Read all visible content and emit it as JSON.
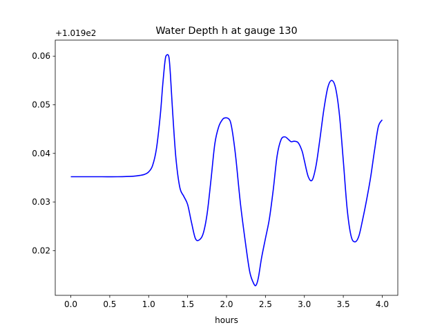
{
  "chart_data": {
    "type": "line",
    "title": "Water Depth h at gauge 130",
    "xlabel": "hours",
    "ylabel": "",
    "offset_label": "+1.019e2",
    "xlim": [
      -0.2,
      4.2
    ],
    "ylim": [
      0.0108,
      0.0633
    ],
    "x_ticks": [
      0.0,
      0.5,
      1.0,
      1.5,
      2.0,
      2.5,
      3.0,
      3.5,
      4.0
    ],
    "x_tick_labels": [
      "0.0",
      "0.5",
      "1.0",
      "1.5",
      "2.0",
      "2.5",
      "3.0",
      "3.5",
      "4.0"
    ],
    "y_ticks": [
      0.02,
      0.03,
      0.04,
      0.05,
      0.06
    ],
    "y_tick_labels": [
      "0.02",
      "0.03",
      "0.04",
      "0.05",
      "0.06"
    ],
    "grid": false,
    "line_color": "#0000ff",
    "series": [
      {
        "x": [
          0.0,
          0.2,
          0.4,
          0.6,
          0.8,
          0.9,
          0.95,
          1.0,
          1.05,
          1.1,
          1.15,
          1.18,
          1.21,
          1.23,
          1.26,
          1.28,
          1.31,
          1.35,
          1.4,
          1.45,
          1.5,
          1.55,
          1.6,
          1.65,
          1.7,
          1.75,
          1.8,
          1.85,
          1.9,
          1.95,
          1.98,
          2.02,
          2.05,
          2.08,
          2.12,
          2.18,
          2.25,
          2.3,
          2.35,
          2.38,
          2.41,
          2.45,
          2.5,
          2.55,
          2.6,
          2.65,
          2.7,
          2.75,
          2.8,
          2.83,
          2.87,
          2.92,
          2.97,
          3.0,
          3.05,
          3.1,
          3.15,
          3.2,
          3.25,
          3.3,
          3.35,
          3.4,
          3.45,
          3.5,
          3.55,
          3.6,
          3.65,
          3.7,
          3.75,
          3.8,
          3.85,
          3.9,
          3.95,
          4.0
        ],
        "y": [
          0.0352,
          0.0352,
          0.0352,
          0.0352,
          0.0353,
          0.0355,
          0.0357,
          0.0362,
          0.0375,
          0.041,
          0.048,
          0.054,
          0.059,
          0.0602,
          0.0598,
          0.056,
          0.048,
          0.039,
          0.033,
          0.0312,
          0.0295,
          0.0258,
          0.0225,
          0.0222,
          0.0235,
          0.0275,
          0.0345,
          0.042,
          0.0455,
          0.047,
          0.0473,
          0.0472,
          0.0465,
          0.044,
          0.039,
          0.0295,
          0.0208,
          0.0155,
          0.0132,
          0.0129,
          0.0145,
          0.0185,
          0.0225,
          0.0265,
          0.0325,
          0.0395,
          0.0428,
          0.0434,
          0.0428,
          0.0424,
          0.0425,
          0.0422,
          0.0405,
          0.0385,
          0.0352,
          0.0345,
          0.0375,
          0.043,
          0.049,
          0.0535,
          0.055,
          0.0535,
          0.048,
          0.0385,
          0.0285,
          0.023,
          0.0218,
          0.023,
          0.0265,
          0.0305,
          0.035,
          0.0405,
          0.0455,
          0.0469
        ]
      }
    ]
  }
}
